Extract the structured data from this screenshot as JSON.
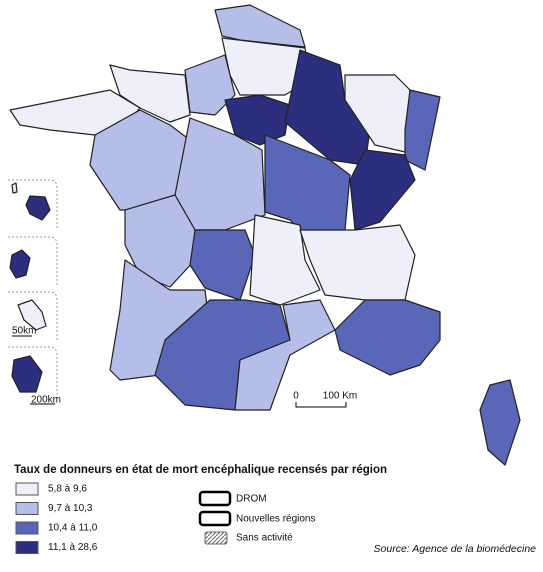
{
  "legend": {
    "title": "Taux de donneurs en état de mort encéphalique recensés par région",
    "items": [
      {
        "label": "5,8 à 9,6",
        "color": "#eeeff8"
      },
      {
        "label": "9,7 à 10,3",
        "color": "#b5bde9"
      },
      {
        "label": "10,4 à 11,0",
        "color": "#5a67b8"
      },
      {
        "label": "11,1 à 28,6",
        "color": "#2c2e7e"
      }
    ]
  },
  "key": {
    "drom": "DROM",
    "regions": "Nouvelles régions",
    "none": "Sans activité"
  },
  "scale": {
    "zero": "0",
    "km": "100 Km",
    "small": "50km",
    "large": "200km"
  },
  "source": "Source: Agence de la biomédecine"
}
